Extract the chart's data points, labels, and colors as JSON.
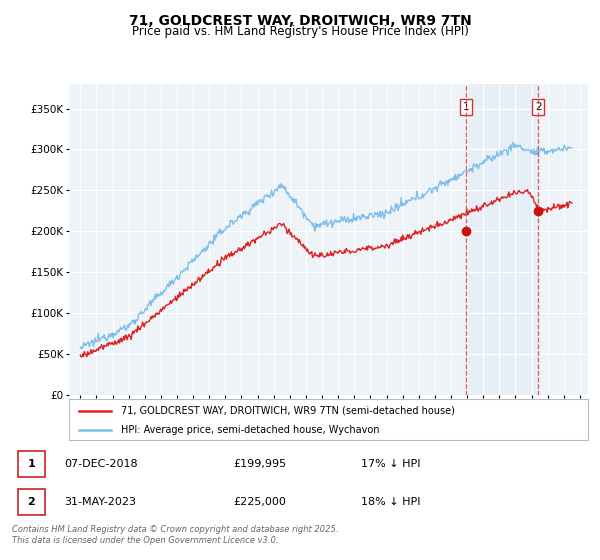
{
  "title": "71, GOLDCREST WAY, DROITWICH, WR9 7TN",
  "subtitle": "Price paid vs. HM Land Registry's House Price Index (HPI)",
  "legend_line1": "71, GOLDCREST WAY, DROITWICH, WR9 7TN (semi-detached house)",
  "legend_line2": "HPI: Average price, semi-detached house, Wychavon",
  "transaction1_date": "07-DEC-2018",
  "transaction1_price": "£199,995",
  "transaction1_hpi": "17% ↓ HPI",
  "transaction2_date": "31-MAY-2023",
  "transaction2_price": "£225,000",
  "transaction2_hpi": "18% ↓ HPI",
  "copyright": "Contains HM Land Registry data © Crown copyright and database right 2025.\nThis data is licensed under the Open Government Licence v3.0.",
  "hpi_color": "#7dbfe8",
  "price_color": "#dd2222",
  "marker_color": "#cc1111",
  "dashed_line_color": "#dd4444",
  "shade_color": "#daeaf5",
  "background_color": "#ffffff",
  "plot_bg_color": "#eef3f8",
  "grid_color": "#ffffff",
  "ylim": [
    0,
    380000
  ],
  "yticks": [
    0,
    50000,
    100000,
    150000,
    200000,
    250000,
    300000,
    350000
  ],
  "year_start": 1995,
  "year_end": 2026,
  "transaction1_year": 2018.92,
  "transaction2_year": 2023.42,
  "t1_price_val": 199995,
  "t2_price_val": 225000
}
